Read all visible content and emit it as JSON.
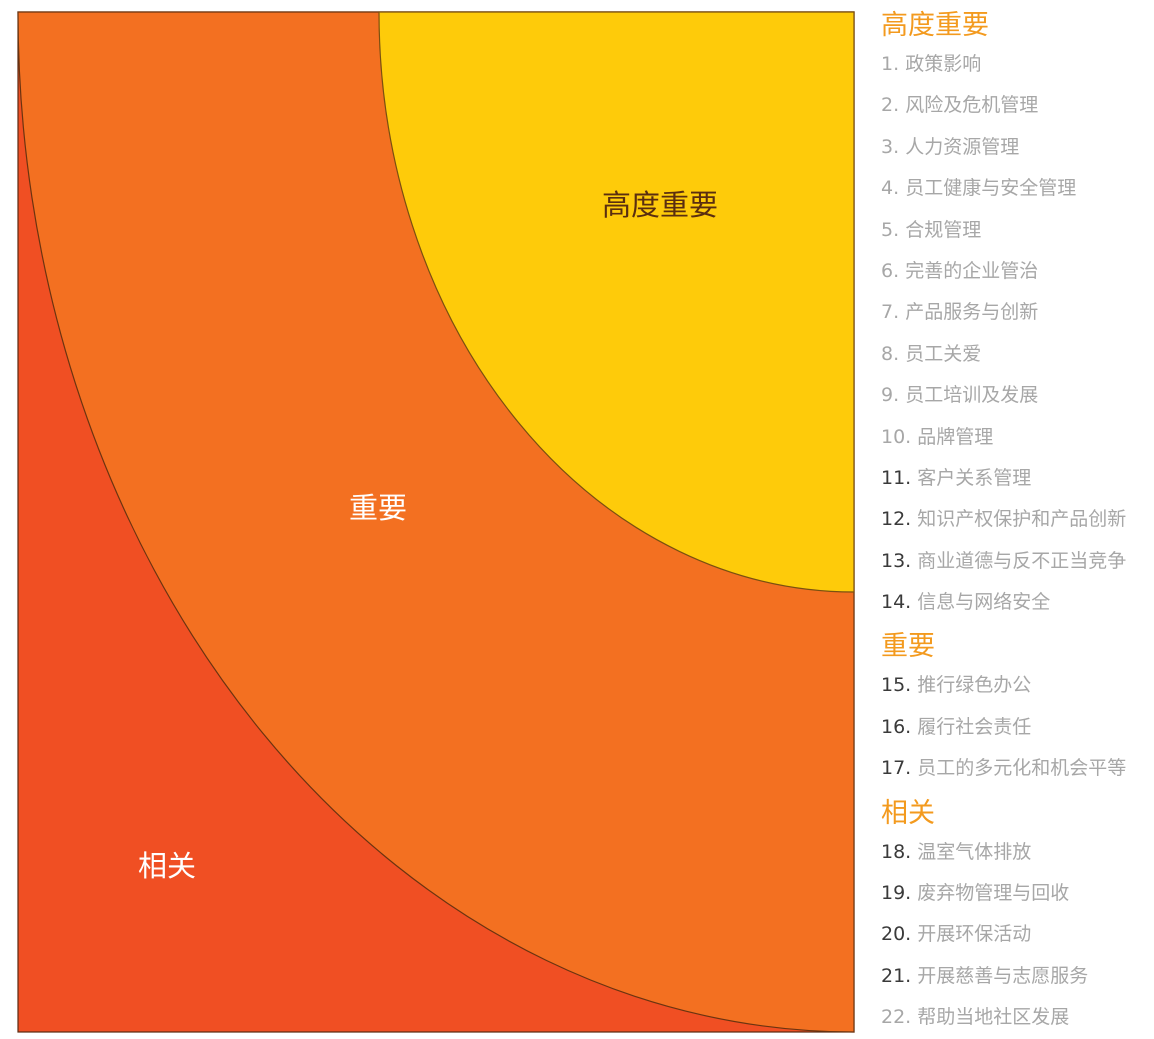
{
  "diagram": {
    "zones": [
      {
        "label": "相关",
        "color": "#f04f23"
      },
      {
        "label": "重要",
        "color": "#f37021"
      },
      {
        "label": "高度重要",
        "color": "#fecb0a"
      }
    ]
  },
  "legend": {
    "groups": [
      {
        "title": "高度重要",
        "items": [
          {
            "num": "1.",
            "text": "政策影响"
          },
          {
            "num": "2.",
            "text": "风险及危机管理"
          },
          {
            "num": "3.",
            "text": "人力资源管理"
          },
          {
            "num": "4.",
            "text": "员工健康与安全管理"
          },
          {
            "num": "5.",
            "text": "合规管理"
          },
          {
            "num": "6.",
            "text": "完善的企业管治"
          },
          {
            "num": "7.",
            "text": "产品服务与创新"
          },
          {
            "num": "8.",
            "text": "员工关爱"
          },
          {
            "num": "9.",
            "text": "员工培训及发展"
          },
          {
            "num": "10.",
            "text": "品牌管理"
          },
          {
            "num": "11.",
            "text": "客户关系管理"
          },
          {
            "num": "12.",
            "text": "知识产权保护和产品创新"
          },
          {
            "num": "13.",
            "text": "商业道德与反不正当竞争"
          },
          {
            "num": "14.",
            "text": "信息与网络安全"
          }
        ]
      },
      {
        "title": "重要",
        "items": [
          {
            "num": "15.",
            "text": "推行绿色办公"
          },
          {
            "num": "16.",
            "text": "履行社会责任"
          },
          {
            "num": "17.",
            "text": "员工的多元化和机会平等"
          }
        ]
      },
      {
        "title": "相关",
        "items": [
          {
            "num": "18.",
            "text": "温室气体排放"
          },
          {
            "num": "19.",
            "text": "废弃物管理与回收"
          },
          {
            "num": "20.",
            "text": "开展环保活动"
          },
          {
            "num": "21.",
            "text": "开展慈善与志愿服务"
          },
          {
            "num": "22.",
            "text": "帮助当地社区发展"
          }
        ]
      }
    ]
  }
}
